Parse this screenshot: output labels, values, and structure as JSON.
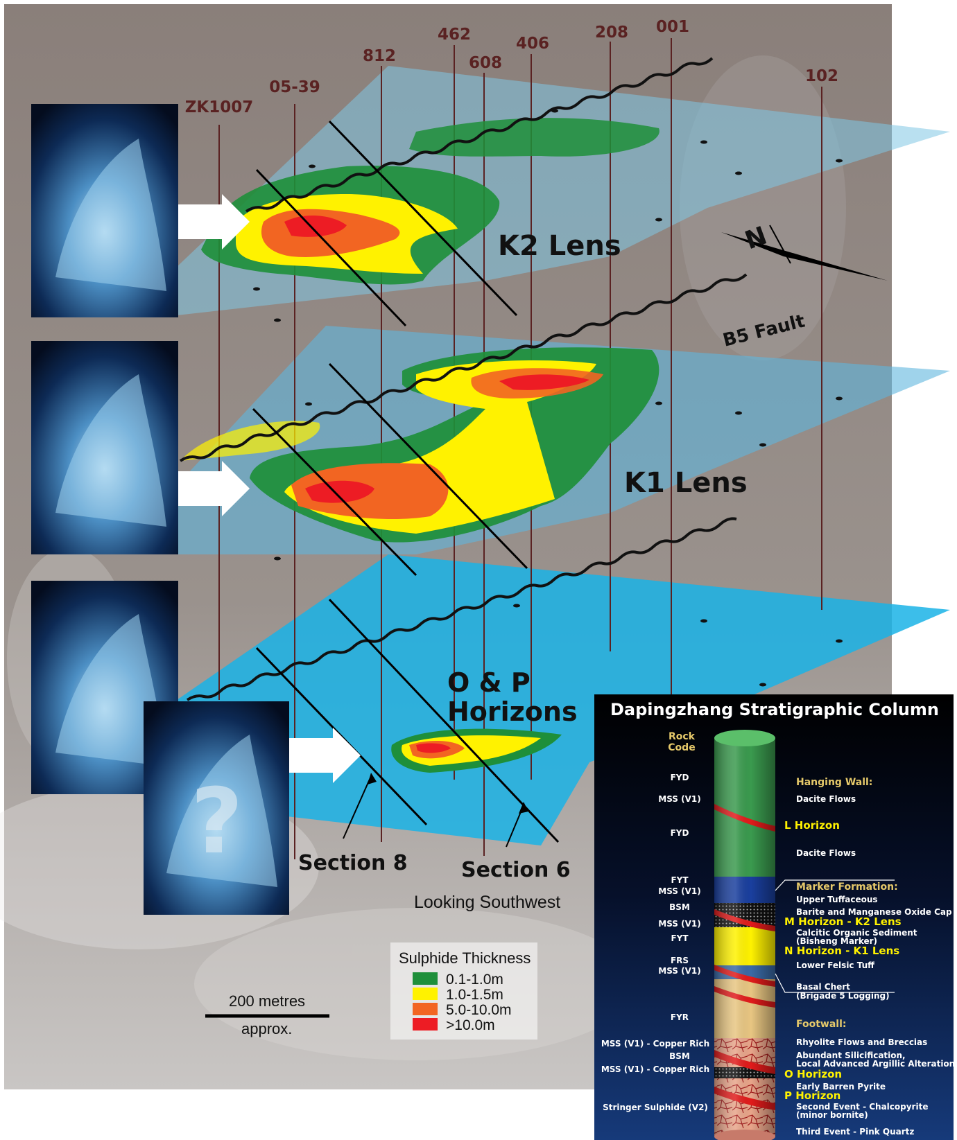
{
  "drillholes": [
    {
      "id": "zk1007",
      "label": "ZK1007"
    },
    {
      "id": "h0539",
      "label": "05-39"
    },
    {
      "id": "h812",
      "label": "812"
    },
    {
      "id": "h462",
      "label": "462"
    },
    {
      "id": "h608",
      "label": "608"
    },
    {
      "id": "h406",
      "label": "406"
    },
    {
      "id": "h208",
      "label": "208"
    },
    {
      "id": "h001",
      "label": "001"
    },
    {
      "id": "h102",
      "label": "102"
    }
  ],
  "lenses": {
    "k2": "K2 Lens",
    "k1": "K1 Lens",
    "op_line1": "O & P",
    "op_line2": "Horizons"
  },
  "fault_label": "B5 Fault",
  "north_symbol": "N",
  "question_mark": "?",
  "sections": {
    "s8": "Section 8",
    "s6": "Section 6",
    "view": "Looking Southwest"
  },
  "scale_bar": {
    "top": "200 metres",
    "bottom": "approx."
  },
  "legend": {
    "title": "Sulphide Thickness",
    "items": [
      {
        "label": "0.1-1.0m",
        "color": "#1e8f3a"
      },
      {
        "label": "1.0-1.5m",
        "color": "#fff200"
      },
      {
        "label": "5.0-10.0m",
        "color": "#f26522"
      },
      {
        "label": ">10.0m",
        "color": "#ed1c24"
      }
    ]
  },
  "strat_column": {
    "title": "Dapingzhang Stratigraphic Column",
    "rock_code_line1": "Rock",
    "rock_code_line2": "Code",
    "left_codes": {
      "fyd1": "FYD",
      "mss1": "MSS (V1)",
      "fyd2": "FYD",
      "fyt1": "FYT",
      "mss2": "MSS (V1)",
      "bsm1": "BSM",
      "mss3": "MSS (V1)",
      "fyt2": "FYT",
      "frs": "FRS",
      "mss4": "MSS (V1)",
      "fyr": "FYR",
      "mss_cu1": "MSS (V1) - Copper Rich",
      "bsm2": "BSM",
      "mss_cu2": "MSS (V1) - Copper Rich",
      "stringer": "Stringer Sulphide (V2)"
    },
    "right_labels": {
      "hanging_wall": "Hanging Wall:",
      "dacite1": "Dacite Flows",
      "l_horizon": "L Horizon",
      "dacite2": "Dacite Flows",
      "marker": "Marker Formation:",
      "upper_tuff": "Upper Tuffaceous",
      "barite": "Barite and Manganese Oxide Cap",
      "m_horizon": "M Horizon - K2 Lens",
      "calcitic1": "Calcitic Organic Sediment",
      "calcitic2": "(Bisheng Marker)",
      "n_horizon": "N Horizon - K1 Lens",
      "lower_felsic": "Lower Felsic Tuff",
      "basal1": "Basal Chert",
      "basal2": "(Brigade 5 Logging)",
      "footwall": "Footwall:",
      "rhyolite": "Rhyolite Flows and Breccias",
      "silic1": "Abundant Silicification,",
      "silic2": "Local Advanced Argillic Alteration",
      "o_horizon": "O Horizon",
      "early": "Early Barren Pyrite",
      "p_horizon": "P Horizon",
      "second1": "Second Event - Chalcopyrite",
      "second2": "(minor bornite)",
      "third": "Third Event - Pink Quartz"
    }
  }
}
